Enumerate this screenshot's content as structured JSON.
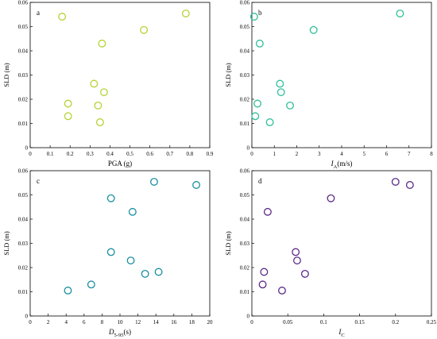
{
  "chart_data": [
    {
      "panel": "a",
      "type": "scatter",
      "xlabel": "PGA (g)",
      "ylabel": "SLD (m)",
      "xlim": [
        0,
        0.9
      ],
      "ylim": [
        0,
        0.06
      ],
      "xticks": [
        "0",
        "0.1",
        "0.2",
        "0.3",
        "0.4",
        "0.5",
        "0.6",
        "0.7",
        "0.8",
        "0.9"
      ],
      "yticks": [
        "0",
        "0.01",
        "0.02",
        "0.03",
        "0.04",
        "0.05",
        "0.06"
      ],
      "marker_color": "#b5d334",
      "points": [
        {
          "x": 0.16,
          "y": 0.0541
        },
        {
          "x": 0.19,
          "y": 0.0182
        },
        {
          "x": 0.19,
          "y": 0.013
        },
        {
          "x": 0.32,
          "y": 0.0264
        },
        {
          "x": 0.34,
          "y": 0.0174
        },
        {
          "x": 0.35,
          "y": 0.0105
        },
        {
          "x": 0.36,
          "y": 0.043
        },
        {
          "x": 0.37,
          "y": 0.0229
        },
        {
          "x": 0.57,
          "y": 0.0486
        },
        {
          "x": 0.78,
          "y": 0.0554
        }
      ]
    },
    {
      "panel": "b",
      "type": "scatter",
      "xlabel_main": "I",
      "xlabel_sub": "A",
      "xlabel_unit": "(m/s)",
      "ylabel": "SLD (m)",
      "xlim": [
        0,
        8
      ],
      "ylim": [
        0,
        0.06
      ],
      "xticks": [
        "0",
        "1",
        "2",
        "3",
        "4",
        "5",
        "6",
        "7",
        "8"
      ],
      "yticks": [
        "0",
        "0.01",
        "0.02",
        "0.03",
        "0.04",
        "0.05",
        "0.06"
      ],
      "marker_color": "#2fbf9a",
      "points": [
        {
          "x": 0.1,
          "y": 0.0541
        },
        {
          "x": 0.15,
          "y": 0.013
        },
        {
          "x": 0.25,
          "y": 0.0182
        },
        {
          "x": 0.35,
          "y": 0.043
        },
        {
          "x": 0.8,
          "y": 0.0105
        },
        {
          "x": 1.25,
          "y": 0.0264
        },
        {
          "x": 1.3,
          "y": 0.0229
        },
        {
          "x": 1.7,
          "y": 0.0174
        },
        {
          "x": 2.75,
          "y": 0.0486
        },
        {
          "x": 6.6,
          "y": 0.0554
        }
      ]
    },
    {
      "panel": "c",
      "type": "scatter",
      "xlabel_main": "D",
      "xlabel_sub": "5-95",
      "xlabel_unit": "(s)",
      "ylabel": "SLD (m)",
      "xlim": [
        0,
        20
      ],
      "ylim": [
        0,
        0.06
      ],
      "xticks": [
        "0",
        "2",
        "4",
        "6",
        "8",
        "10",
        "12",
        "14",
        "16",
        "18",
        "20"
      ],
      "yticks": [
        "0",
        "0.01",
        "0.02",
        "0.03",
        "0.04",
        "0.05",
        "0.06"
      ],
      "marker_color": "#1a8f9e",
      "points": [
        {
          "x": 4.2,
          "y": 0.0105
        },
        {
          "x": 6.8,
          "y": 0.013
        },
        {
          "x": 9.0,
          "y": 0.0486
        },
        {
          "x": 9.0,
          "y": 0.0264
        },
        {
          "x": 11.4,
          "y": 0.043
        },
        {
          "x": 11.2,
          "y": 0.0229
        },
        {
          "x": 12.8,
          "y": 0.0174
        },
        {
          "x": 13.8,
          "y": 0.0554
        },
        {
          "x": 14.3,
          "y": 0.0182
        },
        {
          "x": 18.5,
          "y": 0.0541
        }
      ]
    },
    {
      "panel": "d",
      "type": "scatter",
      "xlabel_main": "I",
      "xlabel_sub": "C",
      "xlabel_unit": "",
      "ylabel": "SLD (m)",
      "xlim": [
        0,
        0.25
      ],
      "ylim": [
        0,
        0.06
      ],
      "xticks": [
        "0",
        "0.05",
        "0.1",
        "0.15",
        "0.2",
        "0.25"
      ],
      "yticks": [
        "0",
        "0.01",
        "0.02",
        "0.03",
        "0.04",
        "0.05",
        "0.06"
      ],
      "marker_color": "#5b2a86",
      "points": [
        {
          "x": 0.015,
          "y": 0.013
        },
        {
          "x": 0.017,
          "y": 0.0182
        },
        {
          "x": 0.022,
          "y": 0.043
        },
        {
          "x": 0.042,
          "y": 0.0105
        },
        {
          "x": 0.061,
          "y": 0.0264
        },
        {
          "x": 0.063,
          "y": 0.0229
        },
        {
          "x": 0.074,
          "y": 0.0174
        },
        {
          "x": 0.11,
          "y": 0.0486
        },
        {
          "x": 0.2,
          "y": 0.0554
        },
        {
          "x": 0.22,
          "y": 0.0541
        }
      ]
    }
  ]
}
